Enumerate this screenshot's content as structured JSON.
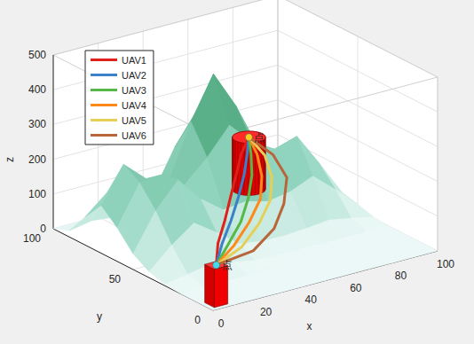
{
  "chart_data": {
    "type": "surface_paths",
    "xlabel": "x",
    "ylabel": "y",
    "zlabel": "z",
    "xlim": [
      0,
      100
    ],
    "ylim": [
      0,
      100
    ],
    "zlim": [
      0,
      500
    ],
    "xticks": [
      0,
      20,
      40,
      60,
      80,
      100
    ],
    "yticks": [
      0,
      50,
      100
    ],
    "zticks": [
      0,
      100,
      200,
      300,
      400,
      500
    ],
    "grid": true,
    "legend": "upper left",
    "surface": {
      "x": [
        0,
        10,
        20,
        30,
        40,
        50,
        60,
        70,
        80,
        90,
        100
      ],
      "y": [
        0,
        10,
        20,
        30,
        40,
        50,
        60,
        70,
        80,
        90,
        100
      ],
      "z": [
        [
          0,
          0,
          0,
          0,
          0,
          0,
          0,
          0,
          0,
          0,
          0
        ],
        [
          0,
          0,
          0,
          0,
          0,
          0,
          0,
          0,
          0,
          0,
          0
        ],
        [
          0,
          1,
          2,
          1,
          0,
          0,
          0,
          0,
          0,
          0,
          0
        ],
        [
          4,
          16,
          27,
          16,
          5,
          2,
          1,
          1,
          2,
          1,
          0
        ],
        [
          17,
          76,
          123,
          79,
          29,
          19,
          17,
          22,
          29,
          17,
          4
        ],
        [
          45,
          151,
          223,
          152,
          103,
          110,
          93,
          104,
          132,
          77,
          17
        ],
        [
          97,
          209,
          215,
          168,
          230,
          306,
          242,
          203,
          223,
          128,
          28
        ],
        [
          138,
          238,
          180,
          153,
          310,
          430,
          321,
          184,
          146,
          79,
          17
        ],
        [
          81,
          136,
          96,
          95,
          214,
          304,
          218,
          93,
          41,
          18,
          4
        ],
        [
          18,
          30,
          23,
          31,
          76,
          107,
          76,
          27,
          7,
          0,
          0
        ],
        [
          1,
          2,
          1,
          5,
          13,
          19,
          13,
          5,
          0,
          0,
          0
        ]
      ]
    },
    "box": {
      "x": [
        2,
        8
      ],
      "y": [
        2,
        8
      ],
      "z": [
        0,
        110
      ]
    },
    "cylinder": {
      "x": 80,
      "y": 90,
      "r": 6,
      "z": [
        0,
        150
      ]
    },
    "annotations": [
      {
        "text": "点",
        "x": 5,
        "y": 5,
        "z": 110
      },
      {
        "text": "点",
        "x": 80,
        "y": 90,
        "z": 150
      }
    ],
    "series": [
      {
        "name": "UAV1",
        "color": "#e0201b",
        "x": [
          5,
          15,
          28,
          42,
          56,
          68,
          80
        ],
        "y": [
          5,
          18,
          32,
          48,
          64,
          78,
          90
        ],
        "z": [
          110,
          125,
          135,
          143,
          148,
          150,
          150
        ]
      },
      {
        "name": "UAV2",
        "color": "#3b80c8",
        "x": [
          5,
          16,
          30,
          44,
          58,
          70,
          80
        ],
        "y": [
          5,
          17,
          31,
          46,
          62,
          77,
          90
        ],
        "z": [
          110,
          122,
          133,
          142,
          147,
          150,
          150
        ]
      },
      {
        "name": "UAV3",
        "color": "#56b848",
        "x": [
          5,
          18,
          33,
          47,
          60,
          71,
          80
        ],
        "y": [
          5,
          16,
          29,
          44,
          60,
          76,
          90
        ],
        "z": [
          110,
          120,
          130,
          139,
          145,
          149,
          150
        ]
      },
      {
        "name": "UAV4",
        "color": "#ff8a1c",
        "x": [
          5,
          20,
          36,
          51,
          63,
          73,
          80
        ],
        "y": [
          5,
          15,
          28,
          42,
          58,
          75,
          90
        ],
        "z": [
          110,
          117,
          126,
          135,
          142,
          148,
          150
        ]
      },
      {
        "name": "UAV5",
        "color": "#e6cf57",
        "x": [
          5,
          22,
          39,
          54,
          66,
          75,
          80
        ],
        "y": [
          5,
          13,
          26,
          40,
          56,
          73,
          90
        ],
        "z": [
          110,
          114,
          122,
          131,
          139,
          146,
          150
        ]
      },
      {
        "name": "UAV6",
        "color": "#b8653a",
        "x": [
          5,
          25,
          45,
          60,
          72,
          78,
          80
        ],
        "y": [
          5,
          10,
          25,
          40,
          55,
          72,
          90
        ],
        "z": [
          110,
          105,
          100,
          110,
          130,
          145,
          150
        ]
      }
    ]
  }
}
